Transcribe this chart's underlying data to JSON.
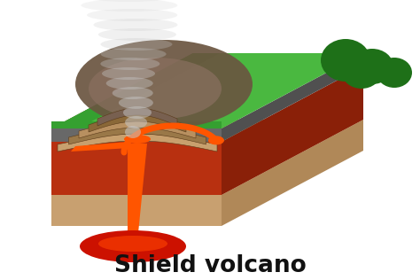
{
  "title": "Shield volcano",
  "title_fontsize": 19,
  "title_fontweight": "bold",
  "title_color": "#111111",
  "bg_color": "#ffffff",
  "colors": {
    "green_bright": "#4ab840",
    "green_mid": "#35a030",
    "green_dark": "#2a8020",
    "green_trees": "#1e7018",
    "red_rock": "#b83010",
    "red_rock_right": "#8a2008",
    "dark_red_deep": "#8b1a00",
    "gray_band": "#686868",
    "gray_band_right": "#505050",
    "tan_bottom": "#c8a070",
    "tan_bottom_right": "#b08858",
    "tan_bottom_top": "#d0a878",
    "lava_orange": "#ff5500",
    "lava_bright": "#ff7700",
    "magma_red": "#cc1100",
    "magma_dark": "#aa0a00",
    "layer_tan1": "#c8a06e",
    "layer_tan2": "#b89060",
    "layer_brown1": "#9a7848",
    "layer_brown2": "#8a6838",
    "layer_dark1": "#786050",
    "layer_dark2": "#685040",
    "volcano_dark": "#6a5540",
    "smoke_col": "#c8c8c8"
  }
}
